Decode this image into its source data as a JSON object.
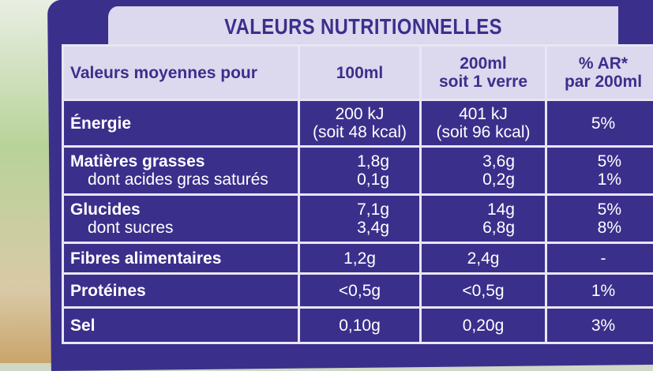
{
  "title": "VALEURS NUTRITIONNELLES",
  "header": [
    "Valeurs moyennes pour",
    "100ml",
    "200ml soit 1 verre",
    "% AR* par 200ml"
  ],
  "header_lines": {
    "c3a": "200ml",
    "c3b": "soit 1 verre",
    "c4a": "% AR*",
    "c4b": "par 200ml"
  },
  "rows": [
    {
      "label": "Énergie",
      "sub": "",
      "v100": "200 kJ",
      "v100b": "(soit 48 kcal)",
      "v200": "401 kJ",
      "v200b": "(soit 96 kcal)",
      "ar": "5%",
      "arb": ""
    },
    {
      "label": "Matières grasses",
      "sub": "dont acides gras saturés",
      "v100": "1,8g",
      "v100b": "0,1g",
      "v200": "3,6g",
      "v200b": "0,2g",
      "ar": "5%",
      "arb": "1%"
    },
    {
      "label": "Glucides",
      "sub": "dont sucres",
      "v100": "7,1g",
      "v100b": "3,4g",
      "v200": "14g",
      "v200b": "6,8g",
      "ar": "5%",
      "arb": "8%"
    },
    {
      "label": "Fibres alimentaires",
      "sub": "",
      "v100": "1,2g",
      "v100b": "",
      "v200": "2,4g",
      "v200b": "",
      "ar": "-",
      "arb": ""
    },
    {
      "label": "Protéines",
      "sub": "",
      "v100": "<0,5g",
      "v100b": "",
      "v200": "<0,5g",
      "v200b": "",
      "ar": "1%",
      "arb": ""
    },
    {
      "label": "Sel",
      "sub": "",
      "v100": "0,10g",
      "v100b": "",
      "v200": "0,20g",
      "v200b": "",
      "ar": "3%",
      "arb": ""
    }
  ],
  "colors": {
    "label_purple": "#3b2f8c",
    "header_lavender": "#dcd8ee"
  }
}
